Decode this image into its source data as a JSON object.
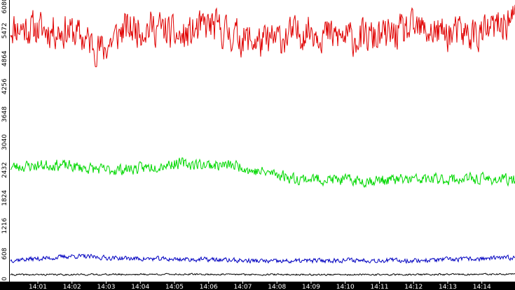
{
  "chart_data": {
    "type": "line",
    "x_tick_labels": [
      "14:01",
      "14:02",
      "14:03",
      "14:04",
      "14:05",
      "14:06",
      "14:07",
      "14:08",
      "14:09",
      "14:10",
      "14:11",
      "14:12",
      "14:13",
      "14:14"
    ],
    "y_tick_labels": [
      "0",
      "608",
      "1216",
      "1824",
      "2432",
      "3040",
      "3648",
      "4256",
      "4864",
      "5472",
      "6080"
    ],
    "ylim": [
      0,
      6080
    ],
    "xlim_minutes": [
      0.2,
      14.97
    ],
    "grid": false,
    "legend": "none",
    "series": [
      {
        "color": "#e00000",
        "base_profile": [
          [
            0.2,
            5550
          ],
          [
            2.0,
            5450
          ],
          [
            2.9,
            5050
          ],
          [
            3.5,
            5500
          ],
          [
            4.5,
            5550
          ],
          [
            5.2,
            5300
          ],
          [
            6.0,
            5600
          ],
          [
            7.0,
            5300
          ],
          [
            7.6,
            5200
          ],
          [
            8.3,
            5350
          ],
          [
            9.0,
            5500
          ],
          [
            9.6,
            5350
          ],
          [
            10.4,
            5300
          ],
          [
            11.2,
            5350
          ],
          [
            12.0,
            5500
          ],
          [
            13.0,
            5400
          ],
          [
            14.0,
            5400
          ],
          [
            14.97,
            5750
          ]
        ],
        "noise": 520,
        "seed": 11
      },
      {
        "color": "#00d800",
        "base_profile": [
          [
            0.2,
            2500
          ],
          [
            1.5,
            2550
          ],
          [
            3.0,
            2430
          ],
          [
            4.0,
            2470
          ],
          [
            5.0,
            2580
          ],
          [
            6.0,
            2550
          ],
          [
            7.0,
            2520
          ],
          [
            7.2,
            2420
          ],
          [
            8.0,
            2350
          ],
          [
            8.5,
            2250
          ],
          [
            9.5,
            2230
          ],
          [
            10.4,
            2200
          ],
          [
            11.5,
            2220
          ],
          [
            12.5,
            2230
          ],
          [
            14.0,
            2240
          ],
          [
            14.97,
            2210
          ]
        ],
        "noise": 170,
        "seed": 23
      },
      {
        "color": "#0000c0",
        "base_profile": [
          [
            0.2,
            470
          ],
          [
            1.5,
            520
          ],
          [
            2.0,
            560
          ],
          [
            3.0,
            520
          ],
          [
            4.0,
            500
          ],
          [
            6.0,
            480
          ],
          [
            8.0,
            440
          ],
          [
            10.0,
            470
          ],
          [
            12.0,
            460
          ],
          [
            14.97,
            520
          ]
        ],
        "noise": 70,
        "seed": 37
      },
      {
        "color": "#000000",
        "base_profile": [
          [
            0.2,
            150
          ],
          [
            5.0,
            160
          ],
          [
            10.0,
            150
          ],
          [
            14.97,
            160
          ]
        ],
        "noise": 25,
        "seed": 41
      }
    ]
  }
}
